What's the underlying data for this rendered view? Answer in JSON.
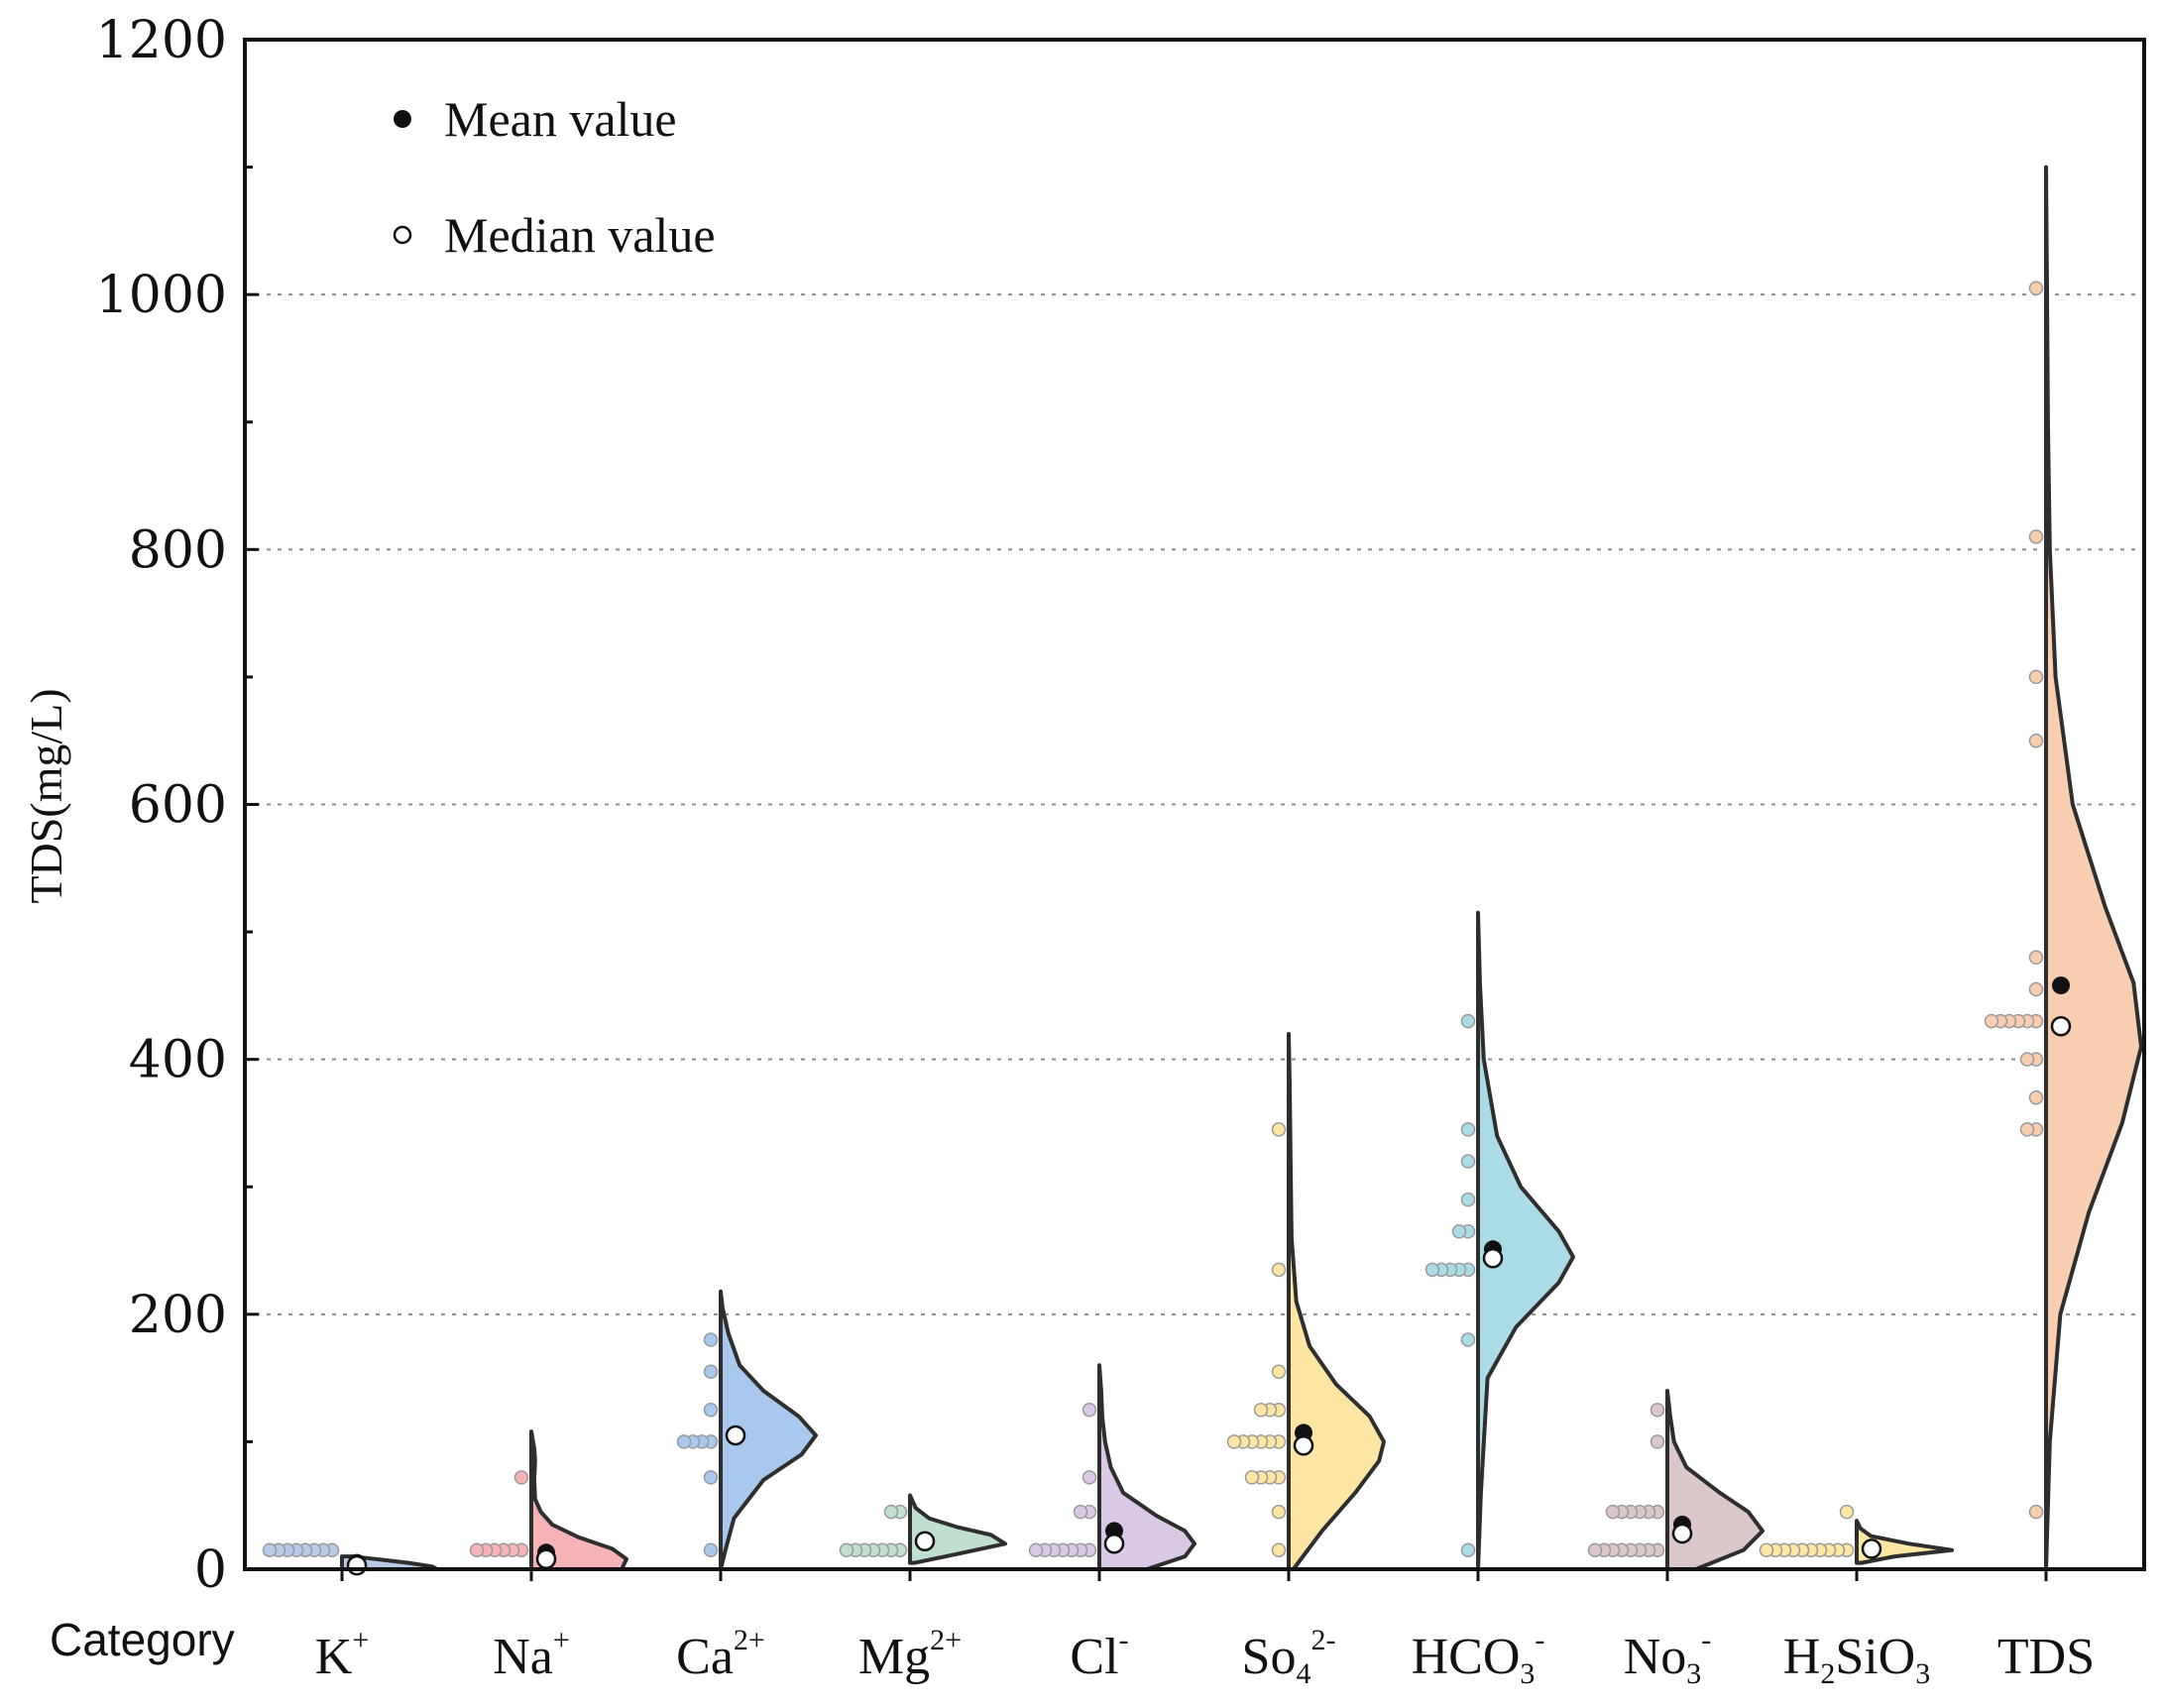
{
  "chart_data": {
    "type": "violin",
    "ylabel": "TDS(mg/L)",
    "xlabel": "Category",
    "ylim": [
      0,
      1200
    ],
    "yticks": [
      0,
      200,
      400,
      600,
      800,
      1000,
      1200
    ],
    "ytick_labels": [
      "0",
      "200",
      "400",
      "600",
      "800",
      "1000",
      "1200"
    ],
    "grid": "horizontal dotted",
    "legend": [
      {
        "label": "Mean value",
        "marker": "filled-circle"
      },
      {
        "label": "Median value",
        "marker": "open-circle"
      }
    ],
    "legend_position": "top-left",
    "series": [
      {
        "category": "K",
        "sup": "+",
        "sub": "",
        "color": "#b7c9e6",
        "mean": 5,
        "median": 3,
        "min": 0,
        "max": 10,
        "density": [
          [
            0,
            1.0
          ],
          [
            2,
            0.95
          ],
          [
            5,
            0.7
          ],
          [
            8,
            0.35
          ],
          [
            10,
            0.1
          ]
        ],
        "points": [
          15,
          15,
          15,
          15,
          15,
          15,
          15,
          15
        ]
      },
      {
        "category": "Na",
        "sup": "+",
        "sub": "",
        "color": "#f5b3b6",
        "mean": 13,
        "median": 8,
        "min": 0,
        "max": 108,
        "density": [
          [
            0,
            0.95
          ],
          [
            8,
            1.0
          ],
          [
            16,
            0.85
          ],
          [
            25,
            0.5
          ],
          [
            35,
            0.22
          ],
          [
            45,
            0.1
          ],
          [
            55,
            0.04
          ],
          [
            70,
            0.03
          ],
          [
            85,
            0.04
          ],
          [
            95,
            0.03
          ],
          [
            108,
            0.0
          ]
        ],
        "points": [
          15,
          15,
          15,
          15,
          15,
          15,
          72
        ]
      },
      {
        "category": "Ca",
        "sup": "2+",
        "sub": "",
        "color": "#a8c8ee",
        "mean": 105,
        "median": 105,
        "min": 0,
        "max": 218,
        "density": [
          [
            0,
            0.0
          ],
          [
            15,
            0.05
          ],
          [
            40,
            0.14
          ],
          [
            70,
            0.45
          ],
          [
            90,
            0.85
          ],
          [
            105,
            1.0
          ],
          [
            120,
            0.82
          ],
          [
            140,
            0.45
          ],
          [
            160,
            0.2
          ],
          [
            185,
            0.08
          ],
          [
            205,
            0.02
          ],
          [
            218,
            0.0
          ]
        ],
        "points": [
          15,
          72,
          100,
          100,
          100,
          100,
          125,
          155,
          180
        ]
      },
      {
        "category": "Mg",
        "sup": "2+",
        "sub": "",
        "color": "#bfe0cf",
        "mean": 22,
        "median": 22,
        "min": 5,
        "max": 58,
        "density": [
          [
            5,
            0.05
          ],
          [
            12,
            0.5
          ],
          [
            20,
            1.0
          ],
          [
            27,
            0.85
          ],
          [
            33,
            0.5
          ],
          [
            40,
            0.2
          ],
          [
            48,
            0.06
          ],
          [
            58,
            0.0
          ]
        ],
        "points": [
          15,
          15,
          15,
          15,
          15,
          15,
          15,
          45,
          45
        ]
      },
      {
        "category": "Cl",
        "sup": "-",
        "sub": "",
        "color": "#d9c8e6",
        "mean": 30,
        "median": 20,
        "min": 0,
        "max": 160,
        "density": [
          [
            0,
            0.5
          ],
          [
            10,
            0.9
          ],
          [
            20,
            1.0
          ],
          [
            30,
            0.9
          ],
          [
            42,
            0.6
          ],
          [
            60,
            0.25
          ],
          [
            80,
            0.12
          ],
          [
            100,
            0.06
          ],
          [
            120,
            0.03
          ],
          [
            140,
            0.02
          ],
          [
            160,
            0.0
          ]
        ],
        "points": [
          15,
          15,
          15,
          15,
          15,
          15,
          15,
          45,
          45,
          72,
          125
        ]
      },
      {
        "category": "So",
        "sup": "2-",
        "sub": "4",
        "color": "#fde6a4",
        "mean": 107,
        "median": 97,
        "min": 0,
        "max": 420,
        "density": [
          [
            0,
            0.05
          ],
          [
            30,
            0.35
          ],
          [
            60,
            0.7
          ],
          [
            85,
            0.95
          ],
          [
            100,
            1.0
          ],
          [
            120,
            0.85
          ],
          [
            145,
            0.5
          ],
          [
            175,
            0.22
          ],
          [
            210,
            0.08
          ],
          [
            260,
            0.03
          ],
          [
            320,
            0.02
          ],
          [
            380,
            0.01
          ],
          [
            420,
            0.0
          ]
        ],
        "points": [
          15,
          45,
          72,
          72,
          72,
          72,
          100,
          100,
          100,
          100,
          100,
          100,
          125,
          125,
          125,
          155,
          235,
          345
        ]
      },
      {
        "category": "HCO",
        "sup": "-",
        "sub": "3",
        "color": "#a9dce6",
        "mean": 251,
        "median": 244,
        "min": 0,
        "max": 515,
        "density": [
          [
            0,
            0.0
          ],
          [
            60,
            0.03
          ],
          [
            150,
            0.1
          ],
          [
            190,
            0.4
          ],
          [
            225,
            0.85
          ],
          [
            245,
            1.0
          ],
          [
            265,
            0.85
          ],
          [
            300,
            0.45
          ],
          [
            340,
            0.2
          ],
          [
            400,
            0.06
          ],
          [
            460,
            0.02
          ],
          [
            515,
            0.0
          ]
        ],
        "points": [
          15,
          180,
          235,
          235,
          235,
          235,
          235,
          265,
          265,
          290,
          320,
          345,
          430
        ]
      },
      {
        "category": "No",
        "sup": "-",
        "sub": "3",
        "color": "#dbc7c9",
        "mean": 35,
        "median": 28,
        "min": 0,
        "max": 140,
        "density": [
          [
            0,
            0.3
          ],
          [
            15,
            0.8
          ],
          [
            30,
            1.0
          ],
          [
            45,
            0.85
          ],
          [
            60,
            0.55
          ],
          [
            80,
            0.2
          ],
          [
            100,
            0.07
          ],
          [
            120,
            0.03
          ],
          [
            140,
            0.0
          ]
        ],
        "points": [
          15,
          15,
          15,
          15,
          15,
          15,
          15,
          15,
          45,
          45,
          45,
          45,
          45,
          45,
          100,
          125
        ]
      },
      {
        "category": "H",
        "sup": "",
        "sub": "",
        "custom": "H2SiO3",
        "color": "#fde7a2",
        "mean": 16,
        "median": 16,
        "min": 5,
        "max": 38,
        "density": [
          [
            5,
            0.05
          ],
          [
            10,
            0.4
          ],
          [
            15,
            1.0
          ],
          [
            20,
            0.55
          ],
          [
            26,
            0.15
          ],
          [
            32,
            0.04
          ],
          [
            38,
            0.0
          ]
        ],
        "points": [
          15,
          15,
          15,
          15,
          15,
          15,
          15,
          15,
          15,
          15,
          45
        ]
      },
      {
        "category": "TDS",
        "sup": "",
        "sub": "",
        "color": "#f9cdb0",
        "mean": 458,
        "median": 426,
        "min": 0,
        "max": 1100,
        "density": [
          [
            0,
            0.0
          ],
          [
            100,
            0.04
          ],
          [
            200,
            0.15
          ],
          [
            280,
            0.45
          ],
          [
            350,
            0.8
          ],
          [
            410,
            1.0
          ],
          [
            460,
            0.92
          ],
          [
            520,
            0.62
          ],
          [
            600,
            0.28
          ],
          [
            700,
            0.1
          ],
          [
            800,
            0.04
          ],
          [
            900,
            0.02
          ],
          [
            1000,
            0.01
          ],
          [
            1100,
            0.0
          ]
        ],
        "points": [
          45,
          345,
          345,
          370,
          400,
          400,
          430,
          430,
          430,
          430,
          430,
          430,
          455,
          480,
          650,
          700,
          810,
          1005
        ]
      }
    ]
  }
}
